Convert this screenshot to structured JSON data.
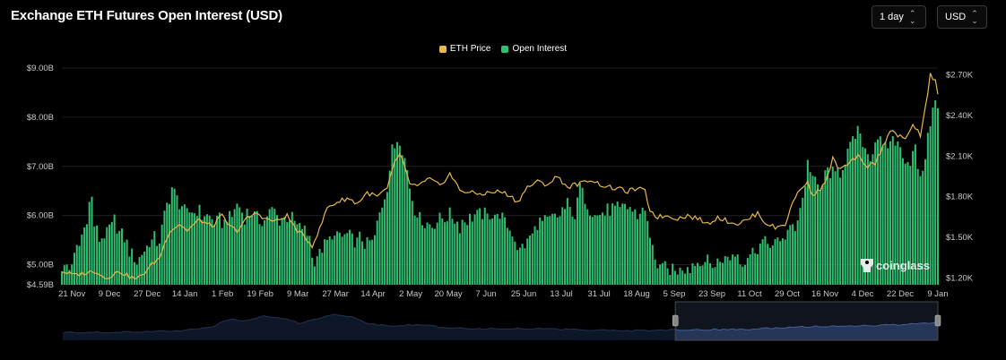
{
  "header": {
    "title": "Exchange ETH Futures Open Interest (USD)",
    "interval_select": "1 day",
    "currency_select": "USD"
  },
  "legend": {
    "eth_price": "ETH Price",
    "open_interest": "Open Interest"
  },
  "watermark": "coinglass",
  "colors": {
    "background": "#000000",
    "open_interest": "#2fbf71",
    "eth_price": "#e8b84a",
    "navigator_fill": "#1b2a4a",
    "navigator_line": "#3f5b96"
  },
  "chart_data": {
    "type": "bar",
    "title": "Exchange ETH Futures Open Interest (USD)",
    "x_ticks": [
      "21 Nov",
      "9 Dec",
      "27 Dec",
      "14 Jan",
      "1 Feb",
      "19 Feb",
      "9 Mar",
      "27 Mar",
      "14 Apr",
      "2 May",
      "20 May",
      "7 Jun",
      "25 Jun",
      "13 Jul",
      "31 Jul",
      "18 Aug",
      "5 Sep",
      "23 Sep",
      "11 Oct",
      "29 Oct",
      "16 Nov",
      "4 Dec",
      "22 Dec",
      "9 Jan"
    ],
    "y_left_ticks": [
      "$9.00B",
      "$8.00B",
      "$7.00B",
      "$6.00B",
      "$5.00B",
      "$4.59B"
    ],
    "y_right_ticks": [
      "$2.70K",
      "$2.40K",
      "$2.10K",
      "$1.80K",
      "$1.50K",
      "$1.20K"
    ],
    "y_left_lim": [
      4.59,
      9.0
    ],
    "y_right_lim": [
      1.15,
      2.75
    ],
    "legend_position": "top-center",
    "series": [
      {
        "name": "Open Interest",
        "kind": "bar",
        "axis": "left",
        "keypoints": [
          [
            0,
            5.0
          ],
          [
            3,
            4.9
          ],
          [
            6,
            5.3
          ],
          [
            9,
            5.7
          ],
          [
            10,
            6.0
          ],
          [
            12,
            6.4
          ],
          [
            13,
            5.8
          ],
          [
            15,
            5.5
          ],
          [
            18,
            5.6
          ],
          [
            21,
            5.9
          ],
          [
            24,
            5.6
          ],
          [
            27,
            5.3
          ],
          [
            30,
            5.1
          ],
          [
            33,
            5.3
          ],
          [
            36,
            5.5
          ],
          [
            39,
            5.5
          ],
          [
            41,
            6.0
          ],
          [
            44,
            6.6
          ],
          [
            47,
            6.3
          ],
          [
            50,
            6.0
          ],
          [
            53,
            6.1
          ],
          [
            57,
            6.0
          ],
          [
            61,
            5.9
          ],
          [
            65,
            5.9
          ],
          [
            68,
            6.0
          ],
          [
            70,
            6.2
          ],
          [
            73,
            6.0
          ],
          [
            76,
            6.1
          ],
          [
            80,
            5.9
          ],
          [
            84,
            6.1
          ],
          [
            88,
            5.9
          ],
          [
            92,
            5.9
          ],
          [
            95,
            5.8
          ],
          [
            99,
            5.6
          ],
          [
            100,
            5.1
          ],
          [
            104,
            5.3
          ],
          [
            108,
            5.6
          ],
          [
            112,
            5.6
          ],
          [
            116,
            5.5
          ],
          [
            120,
            5.5
          ],
          [
            124,
            5.4
          ],
          [
            126,
            5.8
          ],
          [
            128,
            6.2
          ],
          [
            130,
            6.6
          ],
          [
            132,
            7.3
          ],
          [
            134,
            7.6
          ],
          [
            136,
            7.4
          ],
          [
            138,
            6.9
          ],
          [
            140,
            6.3
          ],
          [
            143,
            5.9
          ],
          [
            147,
            5.8
          ],
          [
            151,
            5.9
          ],
          [
            155,
            6.0
          ],
          [
            159,
            5.8
          ],
          [
            163,
            6.0
          ],
          [
            167,
            6.0
          ],
          [
            171,
            6.0
          ],
          [
            175,
            6.0
          ],
          [
            179,
            5.7
          ],
          [
            183,
            5.3
          ],
          [
            186,
            5.5
          ],
          [
            190,
            5.8
          ],
          [
            194,
            5.9
          ],
          [
            198,
            6.0
          ],
          [
            202,
            6.2
          ],
          [
            205,
            6.0
          ],
          [
            207,
            6.6
          ],
          [
            210,
            6.2
          ],
          [
            214,
            6.0
          ],
          [
            218,
            6.1
          ],
          [
            222,
            6.1
          ],
          [
            226,
            6.2
          ],
          [
            230,
            6.0
          ],
          [
            233,
            6.2
          ],
          [
            235,
            5.5
          ],
          [
            238,
            5.0
          ],
          [
            242,
            4.9
          ],
          [
            245,
            4.85
          ],
          [
            249,
            4.95
          ],
          [
            253,
            5.0
          ],
          [
            257,
            5.1
          ],
          [
            261,
            5.0
          ],
          [
            265,
            5.1
          ],
          [
            269,
            5.2
          ],
          [
            273,
            5.1
          ],
          [
            277,
            5.3
          ],
          [
            281,
            5.5
          ],
          [
            285,
            5.4
          ],
          [
            289,
            5.6
          ],
          [
            293,
            5.8
          ],
          [
            296,
            6.3
          ],
          [
            298,
            7.1
          ],
          [
            300,
            6.8
          ],
          [
            303,
            6.5
          ],
          [
            306,
            6.9
          ],
          [
            309,
            6.8
          ],
          [
            312,
            7.0
          ],
          [
            315,
            7.4
          ],
          [
            318,
            7.7
          ],
          [
            320,
            7.5
          ],
          [
            323,
            7.2
          ],
          [
            326,
            7.6
          ],
          [
            329,
            7.3
          ],
          [
            332,
            7.6
          ],
          [
            335,
            7.3
          ],
          [
            338,
            7.1
          ],
          [
            341,
            7.3
          ],
          [
            343,
            6.7
          ],
          [
            346,
            7.5
          ],
          [
            348,
            8.3
          ],
          [
            350,
            8.2
          ]
        ]
      },
      {
        "name": "ETH Price",
        "kind": "line",
        "axis": "right",
        "keypoints": [
          [
            0,
            1.25
          ],
          [
            5,
            1.22
          ],
          [
            10,
            1.24
          ],
          [
            14,
            1.25
          ],
          [
            17,
            1.2
          ],
          [
            20,
            1.22
          ],
          [
            23,
            1.25
          ],
          [
            27,
            1.21
          ],
          [
            30,
            1.19
          ],
          [
            33,
            1.24
          ],
          [
            36,
            1.3
          ],
          [
            39,
            1.35
          ],
          [
            41,
            1.45
          ],
          [
            43,
            1.55
          ],
          [
            45,
            1.57
          ],
          [
            47,
            1.6
          ],
          [
            50,
            1.55
          ],
          [
            55,
            1.63
          ],
          [
            60,
            1.58
          ],
          [
            64,
            1.66
          ],
          [
            67,
            1.58
          ],
          [
            70,
            1.55
          ],
          [
            74,
            1.64
          ],
          [
            78,
            1.68
          ],
          [
            82,
            1.63
          ],
          [
            86,
            1.62
          ],
          [
            90,
            1.66
          ],
          [
            94,
            1.55
          ],
          [
            97,
            1.5
          ],
          [
            100,
            1.44
          ],
          [
            103,
            1.56
          ],
          [
            106,
            1.72
          ],
          [
            110,
            1.76
          ],
          [
            114,
            1.79
          ],
          [
            118,
            1.75
          ],
          [
            122,
            1.83
          ],
          [
            126,
            1.8
          ],
          [
            130,
            1.86
          ],
          [
            133,
            2.05
          ],
          [
            135,
            2.12
          ],
          [
            137,
            2.02
          ],
          [
            139,
            1.88
          ],
          [
            143,
            1.89
          ],
          [
            147,
            1.93
          ],
          [
            151,
            1.88
          ],
          [
            155,
            1.97
          ],
          [
            159,
            1.85
          ],
          [
            163,
            1.83
          ],
          [
            167,
            1.82
          ],
          [
            171,
            1.83
          ],
          [
            175,
            1.84
          ],
          [
            179,
            1.81
          ],
          [
            182,
            1.76
          ],
          [
            186,
            1.87
          ],
          [
            190,
            1.91
          ],
          [
            194,
            1.89
          ],
          [
            198,
            1.95
          ],
          [
            202,
            1.87
          ],
          [
            205,
            1.89
          ],
          [
            208,
            1.9
          ],
          [
            211,
            1.93
          ],
          [
            214,
            1.9
          ],
          [
            218,
            1.87
          ],
          [
            222,
            1.86
          ],
          [
            226,
            1.84
          ],
          [
            230,
            1.86
          ],
          [
            233,
            1.84
          ],
          [
            235,
            1.7
          ],
          [
            238,
            1.65
          ],
          [
            242,
            1.66
          ],
          [
            246,
            1.64
          ],
          [
            250,
            1.66
          ],
          [
            254,
            1.64
          ],
          [
            258,
            1.6
          ],
          [
            262,
            1.65
          ],
          [
            266,
            1.62
          ],
          [
            270,
            1.6
          ],
          [
            274,
            1.63
          ],
          [
            278,
            1.68
          ],
          [
            281,
            1.61
          ],
          [
            285,
            1.57
          ],
          [
            289,
            1.6
          ],
          [
            293,
            1.8
          ],
          [
            296,
            1.88
          ],
          [
            298,
            1.9
          ],
          [
            300,
            1.82
          ],
          [
            303,
            1.85
          ],
          [
            306,
            1.95
          ],
          [
            308,
            2.08
          ],
          [
            311,
            2.0
          ],
          [
            315,
            2.05
          ],
          [
            318,
            2.1
          ],
          [
            321,
            2.02
          ],
          [
            325,
            2.05
          ],
          [
            328,
            2.17
          ],
          [
            331,
            2.3
          ],
          [
            334,
            2.25
          ],
          [
            337,
            2.22
          ],
          [
            340,
            2.34
          ],
          [
            343,
            2.25
          ],
          [
            345,
            2.45
          ],
          [
            347,
            2.7
          ],
          [
            349,
            2.65
          ],
          [
            350,
            2.55
          ]
        ]
      }
    ],
    "navigator": {
      "keypoints": [
        [
          0,
          0.2
        ],
        [
          6,
          0.21
        ],
        [
          10,
          0.22
        ],
        [
          14,
          0.26
        ],
        [
          17,
          0.35
        ],
        [
          19,
          0.55
        ],
        [
          21,
          0.5
        ],
        [
          23,
          0.62
        ],
        [
          25,
          0.58
        ],
        [
          27,
          0.45
        ],
        [
          29,
          0.55
        ],
        [
          31,
          0.66
        ],
        [
          33,
          0.6
        ],
        [
          35,
          0.42
        ],
        [
          37,
          0.38
        ],
        [
          41,
          0.4
        ],
        [
          44,
          0.32
        ],
        [
          48,
          0.3
        ],
        [
          52,
          0.31
        ],
        [
          56,
          0.29
        ],
        [
          60,
          0.27
        ],
        [
          65,
          0.25
        ],
        [
          70,
          0.27
        ],
        [
          75,
          0.28
        ],
        [
          80,
          0.3
        ],
        [
          85,
          0.35
        ],
        [
          90,
          0.38
        ],
        [
          95,
          0.4
        ],
        [
          100,
          0.45
        ]
      ],
      "selected_range": [
        70,
        100
      ]
    }
  }
}
